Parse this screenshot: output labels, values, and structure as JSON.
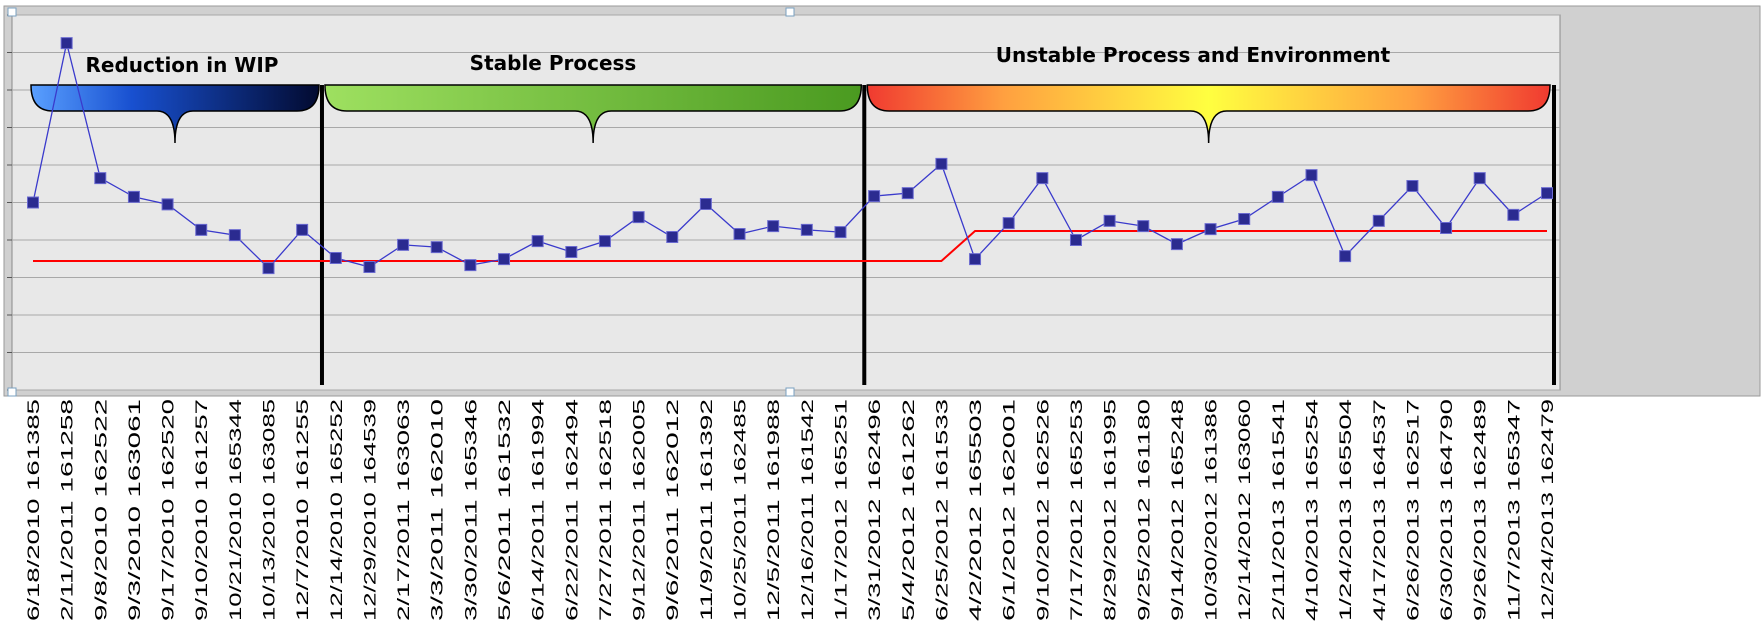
{
  "chart_data": {
    "type": "line",
    "annotations": [
      "Reduction in WIP",
      "Stable Process",
      "Unstable Process and Environment"
    ],
    "categories": [
      "6/18/2010 161385",
      "2/11/2011 161258",
      "9/8/2010 162522",
      "9/3/2010 163061",
      "9/17/2010 162520",
      "9/10/2010 161257",
      "10/21/2010 165344",
      "10/13/2010 163085",
      "12/7/2010 161255",
      "12/14/2010 165252",
      "12/29/2010 164539",
      "2/17/2011 163063",
      "3/3/2011 162010",
      "3/30/2011 165346",
      "5/6/2011 161532",
      "6/14/2011 161994",
      "6/22/2011 162494",
      "7/27/2011 162518",
      "9/12/2011 162005",
      "9/6/2011 162012",
      "11/9/2011 161392",
      "10/25/2011 162485",
      "12/5/2011 161988",
      "12/16/2011 161542",
      "1/17/2012 165251",
      "3/31/2012 162496",
      "5/4/2012 161262",
      "6/25/2012 161533",
      "4/2/2012 165503",
      "6/1/2012 162001",
      "9/10/2012 162526",
      "7/17/2012 165253",
      "8/29/2012 161995",
      "9/25/2012 161180",
      "9/14/2012 165248",
      "10/30/2012 161386",
      "12/14/2012 163060",
      "2/11/2013 161541",
      "4/10/2013 165254",
      "1/24/2013 165504",
      "4/17/2013 164537",
      "6/26/2013 162517",
      "6/30/2013 164790",
      "9/26/2013 162489",
      "11/7/2013 165347",
      "12/24/2013 162479"
    ],
    "series": [
      {
        "color": "#3a3acc",
        "marker_color": "#2b2b90",
        "values": [
          5.0,
          9.25,
          5.65,
          5.15,
          4.95,
          4.27,
          4.13,
          3.25,
          4.27,
          3.52,
          3.28,
          3.87,
          3.81,
          3.33,
          3.49,
          3.97,
          3.68,
          3.97,
          4.61,
          4.08,
          4.96,
          4.16,
          4.37,
          4.27,
          4.21,
          5.17,
          5.25,
          6.03,
          3.49,
          4.45,
          5.65,
          4.0,
          4.51,
          4.37,
          3.89,
          4.29,
          4.56,
          5.15,
          5.73,
          3.57,
          4.51,
          5.44,
          4.32,
          5.65,
          4.67,
          5.25
        ]
      },
      {
        "color": "#ff0000",
        "values": [
          3.44,
          3.44,
          3.44,
          3.44,
          3.44,
          3.44,
          3.44,
          3.44,
          3.44,
          3.44,
          3.44,
          3.44,
          3.44,
          3.44,
          3.44,
          3.44,
          3.44,
          3.44,
          3.44,
          3.44,
          3.44,
          3.44,
          3.44,
          3.44,
          3.44,
          3.44,
          3.44,
          3.44,
          4.24,
          4.24,
          4.24,
          4.24,
          4.24,
          4.24,
          4.24,
          4.24,
          4.24,
          4.24,
          4.24,
          4.24,
          4.24,
          4.24,
          4.24,
          4.24,
          4.24,
          4.24
        ]
      }
    ],
    "ylim": [
      0,
      10
    ],
    "yticks": [
      0,
      1,
      2,
      3,
      4,
      5,
      6,
      7,
      8,
      9,
      10
    ],
    "grid": true
  }
}
